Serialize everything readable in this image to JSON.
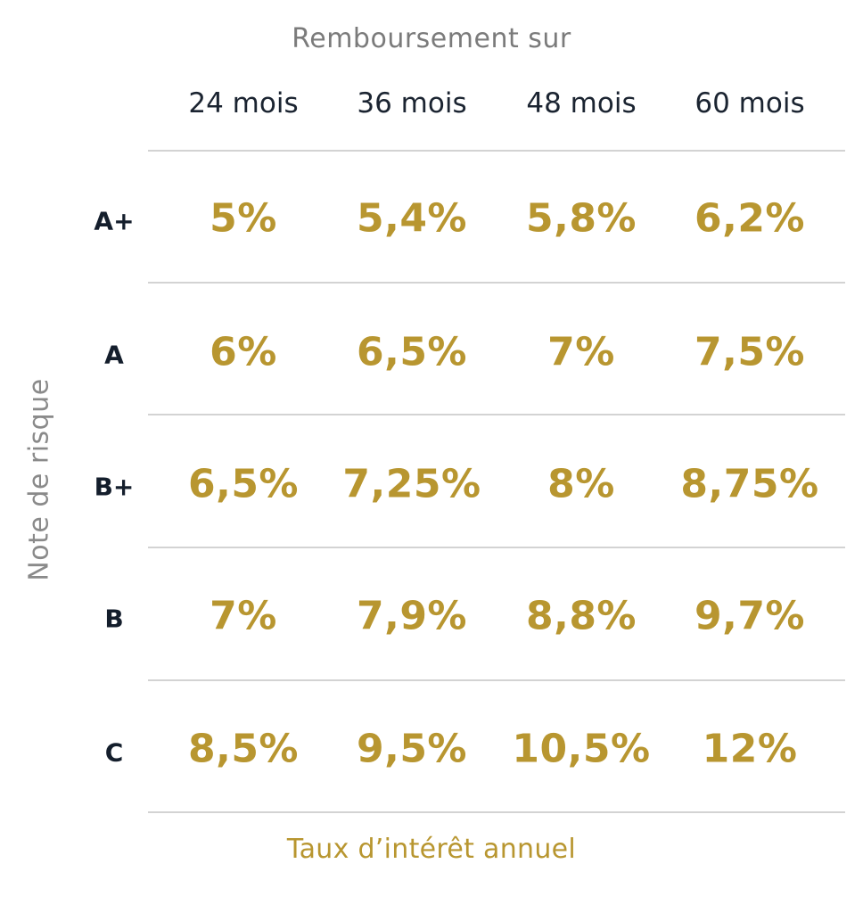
{
  "chart_data": {
    "type": "table",
    "title": "Remboursement sur",
    "ylabel": "Note de risque",
    "caption": "Taux d’intérêt annuel",
    "columns": [
      "24 mois",
      "36 mois",
      "48 mois",
      "60 mois"
    ],
    "rows": [
      {
        "label": "A+",
        "values": [
          "5%",
          "5,4%",
          "5,8%",
          "6,2%"
        ]
      },
      {
        "label": "A",
        "values": [
          "6%",
          "6,5%",
          "7%",
          "7,5%"
        ]
      },
      {
        "label": "B+",
        "values": [
          "6,5%",
          "7,25%",
          "8%",
          "8,75%"
        ]
      },
      {
        "label": "B",
        "values": [
          "7%",
          "7,9%",
          "8,8%",
          "9,7%"
        ]
      },
      {
        "label": "C",
        "values": [
          "8,5%",
          "9,5%",
          "10,5%",
          "12%"
        ]
      }
    ],
    "colors": {
      "value": "#b89630",
      "header": "#1b2431",
      "title": "#7b7b7b",
      "rule": "#d3d3d3"
    }
  }
}
